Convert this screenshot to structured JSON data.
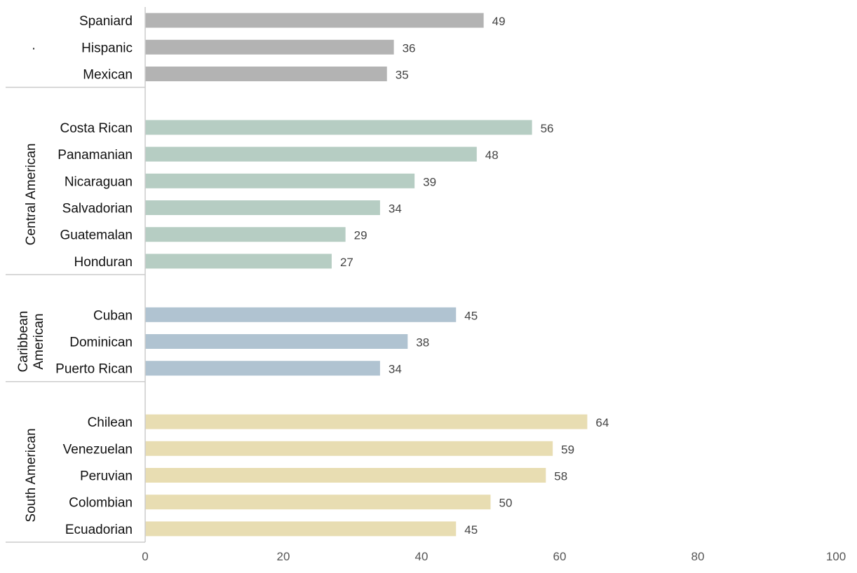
{
  "chart_data": {
    "type": "bar",
    "orientation": "horizontal",
    "xlim": [
      0,
      100
    ],
    "x_ticks": [
      "0",
      "20",
      "40",
      "60",
      "80",
      "100"
    ],
    "grid": false,
    "groups": [
      {
        "label": ".",
        "label_lines": [
          "."
        ],
        "color": "#b3b3b3",
        "categories": [
          "Spaniard",
          "Hispanic",
          "Mexican"
        ],
        "values": [
          49,
          36,
          35
        ]
      },
      {
        "label": "Central American",
        "label_lines": [
          "Central American"
        ],
        "color": "#b6cdc3",
        "categories": [
          "Costa Rican",
          "Panamanian",
          "Nicaraguan",
          "Salvadorian",
          "Guatemalan",
          "Honduran"
        ],
        "values": [
          56,
          48,
          39,
          34,
          29,
          27
        ]
      },
      {
        "label": "Caribbean American",
        "label_lines": [
          "Caribbean",
          "American"
        ],
        "color": "#b0c3d1",
        "categories": [
          "Cuban",
          "Dominican",
          "Puerto Rican"
        ],
        "values": [
          45,
          38,
          34
        ]
      },
      {
        "label": "South American",
        "label_lines": [
          "South American"
        ],
        "color": "#e8ddb2",
        "categories": [
          "Chilean",
          "Venezuelan",
          "Peruvian",
          "Colombian",
          "Ecuadorian"
        ],
        "values": [
          64,
          59,
          58,
          50,
          45
        ]
      }
    ]
  }
}
